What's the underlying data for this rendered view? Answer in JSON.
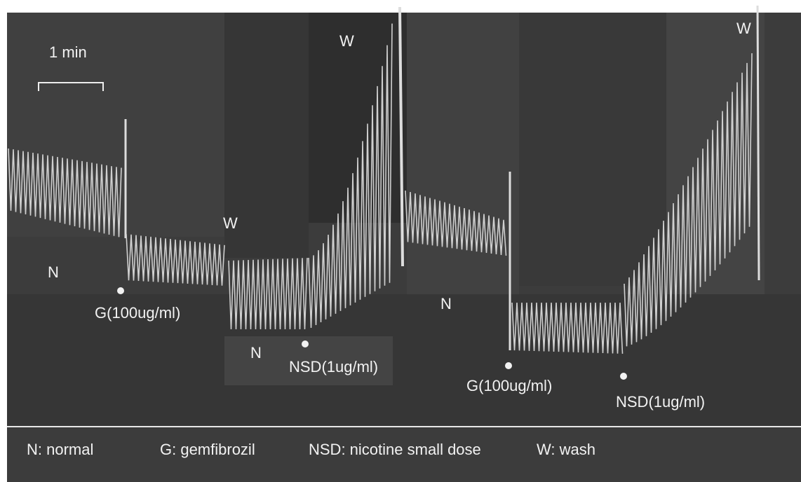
{
  "figure": {
    "scale_bar": {
      "label": "1 min"
    },
    "annotations": [
      {
        "label": "N"
      },
      {
        "label": "G(100ug/ml)"
      },
      {
        "label": "W"
      },
      {
        "label": "W"
      },
      {
        "label": "N"
      },
      {
        "label": "NSD(1ug/ml)"
      },
      {
        "label": "N"
      },
      {
        "label": "G(100ug/ml)"
      },
      {
        "label": "NSD(1ug/ml)"
      },
      {
        "label": "W"
      }
    ],
    "legend": [
      {
        "label": "N: normal"
      },
      {
        "label": "G: gemfibrozil"
      },
      {
        "label": "NSD: nicotine small dose"
      },
      {
        "label": "W: wash"
      }
    ]
  }
}
